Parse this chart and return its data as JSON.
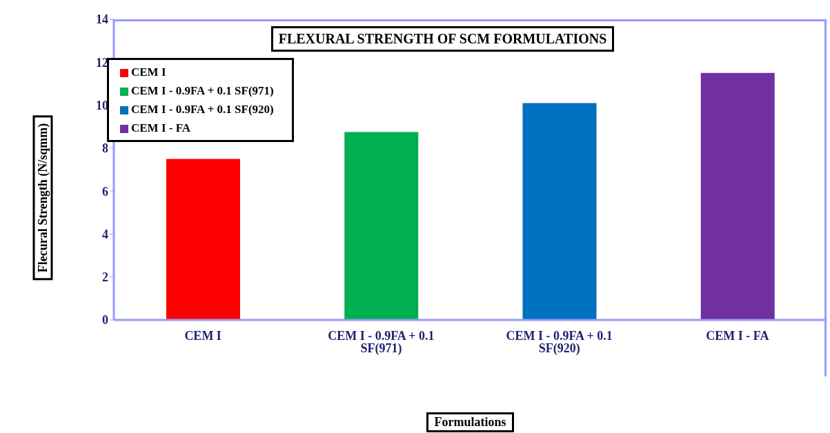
{
  "chart_data": {
    "type": "bar",
    "title": "FLEXURAL STRENGTH OF SCM FORMULATIONS",
    "xlabel": "Formulations",
    "ylabel": "Flecural Strength (N/sqmm)",
    "categories": [
      "CEM I",
      "CEM I - 0.9FA + 0.1 SF(971)",
      "CEM I - 0.9FA + 0.1 SF(920)",
      "CEM I - FA"
    ],
    "series": [
      {
        "name": "CEM I",
        "color": "#ff0000",
        "values": [
          7.5,
          null,
          null,
          null
        ]
      },
      {
        "name": "CEM I - 0.9FA + 0.1 SF(971)",
        "color": "#00b050",
        "values": [
          null,
          8.75,
          null,
          null
        ]
      },
      {
        "name": "CEM I - 0.9FA + 0.1 SF(920)",
        "color": "#0070c0",
        "values": [
          null,
          null,
          10.1,
          null
        ]
      },
      {
        "name": "CEM I - FA",
        "color": "#7030a0",
        "values": [
          null,
          null,
          null,
          11.5
        ]
      }
    ],
    "stacked": true,
    "ylim": [
      0,
      14
    ],
    "yticks": [
      0,
      2,
      4,
      6,
      8,
      10,
      12,
      14
    ],
    "grid": false,
    "legend": "top left"
  }
}
